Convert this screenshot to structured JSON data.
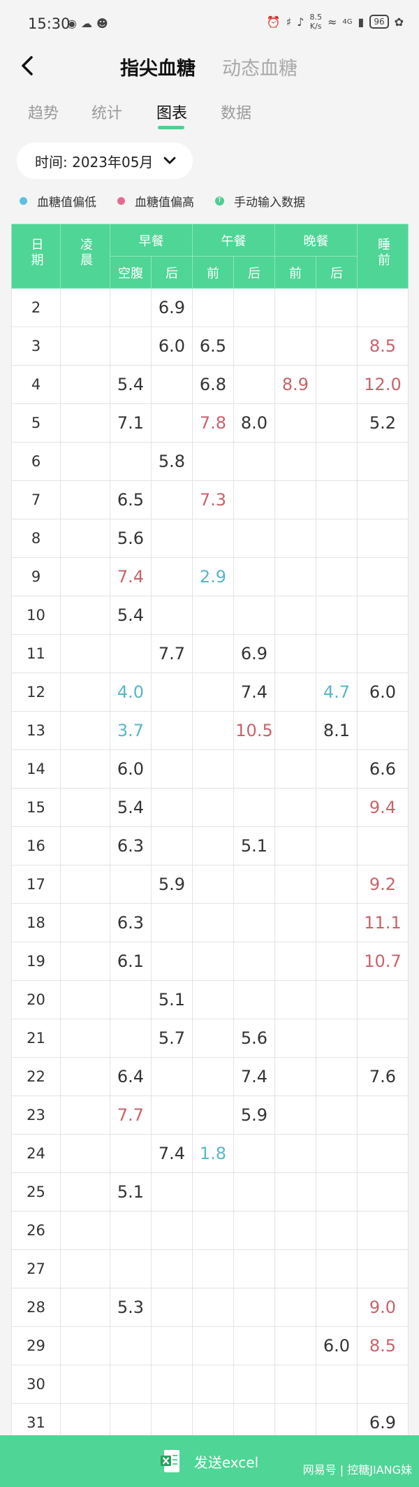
{
  "status_bar": {
    "time": "15:30",
    "net_speed_value": "8.5",
    "net_speed_unit": "K/s",
    "signal": "4G",
    "battery": "96",
    "icons": [
      "wechat-icon",
      "cloud-icon",
      "qq-icon",
      "alarm-icon",
      "bluetooth-icon",
      "mute-icon",
      "wifi-icon",
      "signal-icon",
      "leaf-icon"
    ]
  },
  "nav": {
    "tab_active": "指尖血糖",
    "tab_inactive": "动态血糖"
  },
  "subtabs": [
    "趋势",
    "统计",
    "图表",
    "数据"
  ],
  "time_select": {
    "label": "时间: 2023年05月"
  },
  "legend": {
    "low": {
      "label": "血糖值偏低",
      "color": "#5ac0e0"
    },
    "high": {
      "label": "血糖值偏高",
      "color": "#e56a8f"
    },
    "manual": {
      "label": "手动输入数据",
      "icon_char": "T",
      "color": "#4fcf94"
    }
  },
  "colors": {
    "accent": "#4fd596",
    "high_text": "#c8636a",
    "low_text": "#5ab5c8"
  },
  "table": {
    "headers": {
      "date": "日期",
      "dawn": "凌晨",
      "breakfast": "早餐",
      "lunch": "午餐",
      "dinner": "晚餐",
      "bedtime": "睡前",
      "fasting": "空腹",
      "after": "后",
      "before": "前",
      "after2": "后",
      "before2": "前",
      "after3": "后"
    },
    "rows": [
      {
        "day": "2",
        "dawn": "",
        "fasting": "",
        "b_after": "6.9",
        "l_before": "",
        "l_after": "",
        "d_before": "",
        "d_after": "",
        "bed": ""
      },
      {
        "day": "3",
        "dawn": "",
        "fasting": "",
        "b_after": "6.0",
        "l_before": "6.5",
        "l_after": "",
        "d_before": "",
        "d_after": "",
        "bed": "8.5"
      },
      {
        "day": "4",
        "dawn": "",
        "fasting": "5.4",
        "b_after": "",
        "l_before": "6.8",
        "l_after": "",
        "d_before": "8.9",
        "d_after": "",
        "bed": "12.0"
      },
      {
        "day": "5",
        "dawn": "",
        "fasting": "7.1",
        "b_after": "",
        "l_before": "7.8",
        "l_after": "8.0",
        "d_before": "",
        "d_after": "",
        "bed": "5.2"
      },
      {
        "day": "6",
        "dawn": "",
        "fasting": "",
        "b_after": "5.8",
        "l_before": "",
        "l_after": "",
        "d_before": "",
        "d_after": "",
        "bed": ""
      },
      {
        "day": "7",
        "dawn": "",
        "fasting": "6.5",
        "b_after": "",
        "l_before": "7.3",
        "l_after": "",
        "d_before": "",
        "d_after": "",
        "bed": ""
      },
      {
        "day": "8",
        "dawn": "",
        "fasting": "5.6",
        "b_after": "",
        "l_before": "",
        "l_after": "",
        "d_before": "",
        "d_after": "",
        "bed": ""
      },
      {
        "day": "9",
        "dawn": "",
        "fasting": "7.4",
        "b_after": "",
        "l_before": "2.9",
        "l_after": "",
        "d_before": "",
        "d_after": "",
        "bed": ""
      },
      {
        "day": "10",
        "dawn": "",
        "fasting": "5.4",
        "b_after": "",
        "l_before": "",
        "l_after": "",
        "d_before": "",
        "d_after": "",
        "bed": ""
      },
      {
        "day": "11",
        "dawn": "",
        "fasting": "",
        "b_after": "7.7",
        "l_before": "",
        "l_after": "6.9",
        "d_before": "",
        "d_after": "",
        "bed": ""
      },
      {
        "day": "12",
        "dawn": "",
        "fasting": "4.0",
        "b_after": "",
        "l_before": "",
        "l_after": "7.4",
        "d_before": "",
        "d_after": "4.7",
        "bed": "6.0"
      },
      {
        "day": "13",
        "dawn": "",
        "fasting": "3.7",
        "b_after": "",
        "l_before": "",
        "l_after": "10.5",
        "d_before": "",
        "d_after": "8.1",
        "bed": ""
      },
      {
        "day": "14",
        "dawn": "",
        "fasting": "6.0",
        "b_after": "",
        "l_before": "",
        "l_after": "",
        "d_before": "",
        "d_after": "",
        "bed": "6.6"
      },
      {
        "day": "15",
        "dawn": "",
        "fasting": "5.4",
        "b_after": "",
        "l_before": "",
        "l_after": "",
        "d_before": "",
        "d_after": "",
        "bed": "9.4"
      },
      {
        "day": "16",
        "dawn": "",
        "fasting": "6.3",
        "b_after": "",
        "l_before": "",
        "l_after": "5.1",
        "d_before": "",
        "d_after": "",
        "bed": ""
      },
      {
        "day": "17",
        "dawn": "",
        "fasting": "",
        "b_after": "5.9",
        "l_before": "",
        "l_after": "",
        "d_before": "",
        "d_after": "",
        "bed": "9.2"
      },
      {
        "day": "18",
        "dawn": "",
        "fasting": "6.3",
        "b_after": "",
        "l_before": "",
        "l_after": "",
        "d_before": "",
        "d_after": "",
        "bed": "11.1"
      },
      {
        "day": "19",
        "dawn": "",
        "fasting": "6.1",
        "b_after": "",
        "l_before": "",
        "l_after": "",
        "d_before": "",
        "d_after": "",
        "bed": "10.7"
      },
      {
        "day": "20",
        "dawn": "",
        "fasting": "",
        "b_after": "5.1",
        "l_before": "",
        "l_after": "",
        "d_before": "",
        "d_after": "",
        "bed": ""
      },
      {
        "day": "21",
        "dawn": "",
        "fasting": "",
        "b_after": "5.7",
        "l_before": "",
        "l_after": "5.6",
        "d_before": "",
        "d_after": "",
        "bed": ""
      },
      {
        "day": "22",
        "dawn": "",
        "fasting": "6.4",
        "b_after": "",
        "l_before": "",
        "l_after": "7.4",
        "d_before": "",
        "d_after": "",
        "bed": "7.6"
      },
      {
        "day": "23",
        "dawn": "",
        "fasting": "7.7",
        "b_after": "",
        "l_before": "",
        "l_after": "5.9",
        "d_before": "",
        "d_after": "",
        "bed": ""
      },
      {
        "day": "24",
        "dawn": "",
        "fasting": "",
        "b_after": "7.4",
        "l_before": "1.8",
        "l_after": "",
        "d_before": "",
        "d_after": "",
        "bed": ""
      },
      {
        "day": "25",
        "dawn": "",
        "fasting": "5.1",
        "b_after": "",
        "l_before": "",
        "l_after": "",
        "d_before": "",
        "d_after": "",
        "bed": ""
      },
      {
        "day": "26",
        "dawn": "",
        "fasting": "",
        "b_after": "",
        "l_before": "",
        "l_after": "",
        "d_before": "",
        "d_after": "",
        "bed": ""
      },
      {
        "day": "27",
        "dawn": "",
        "fasting": "",
        "b_after": "",
        "l_before": "",
        "l_after": "",
        "d_before": "",
        "d_after": "",
        "bed": ""
      },
      {
        "day": "28",
        "dawn": "",
        "fasting": "5.3",
        "b_after": "",
        "l_before": "",
        "l_after": "",
        "d_before": "",
        "d_after": "",
        "bed": "9.0"
      },
      {
        "day": "29",
        "dawn": "",
        "fasting": "",
        "b_after": "",
        "l_before": "",
        "l_after": "",
        "d_before": "",
        "d_after": "6.0",
        "bed": "8.5"
      },
      {
        "day": "30",
        "dawn": "",
        "fasting": "",
        "b_after": "",
        "l_before": "",
        "l_after": "",
        "d_before": "",
        "d_after": "",
        "bed": ""
      },
      {
        "day": "31",
        "dawn": "",
        "fasting": "",
        "b_after": "",
        "l_before": "",
        "l_after": "",
        "d_before": "",
        "d_after": "",
        "bed": "6.9"
      }
    ],
    "high_cells": [
      "3.bed",
      "4.d_before",
      "4.bed",
      "5.l_before",
      "7.l_before",
      "9.fasting",
      "13.l_after",
      "15.bed",
      "17.bed",
      "18.bed",
      "19.bed",
      "23.fasting",
      "28.bed",
      "29.bed"
    ],
    "low_cells": [
      "9.l_before",
      "12.fasting",
      "12.d_after",
      "13.fasting",
      "24.l_before"
    ]
  },
  "footer": {
    "button_label": "发送excel",
    "watermark": "网易号 | 控糖JIANG妹"
  }
}
